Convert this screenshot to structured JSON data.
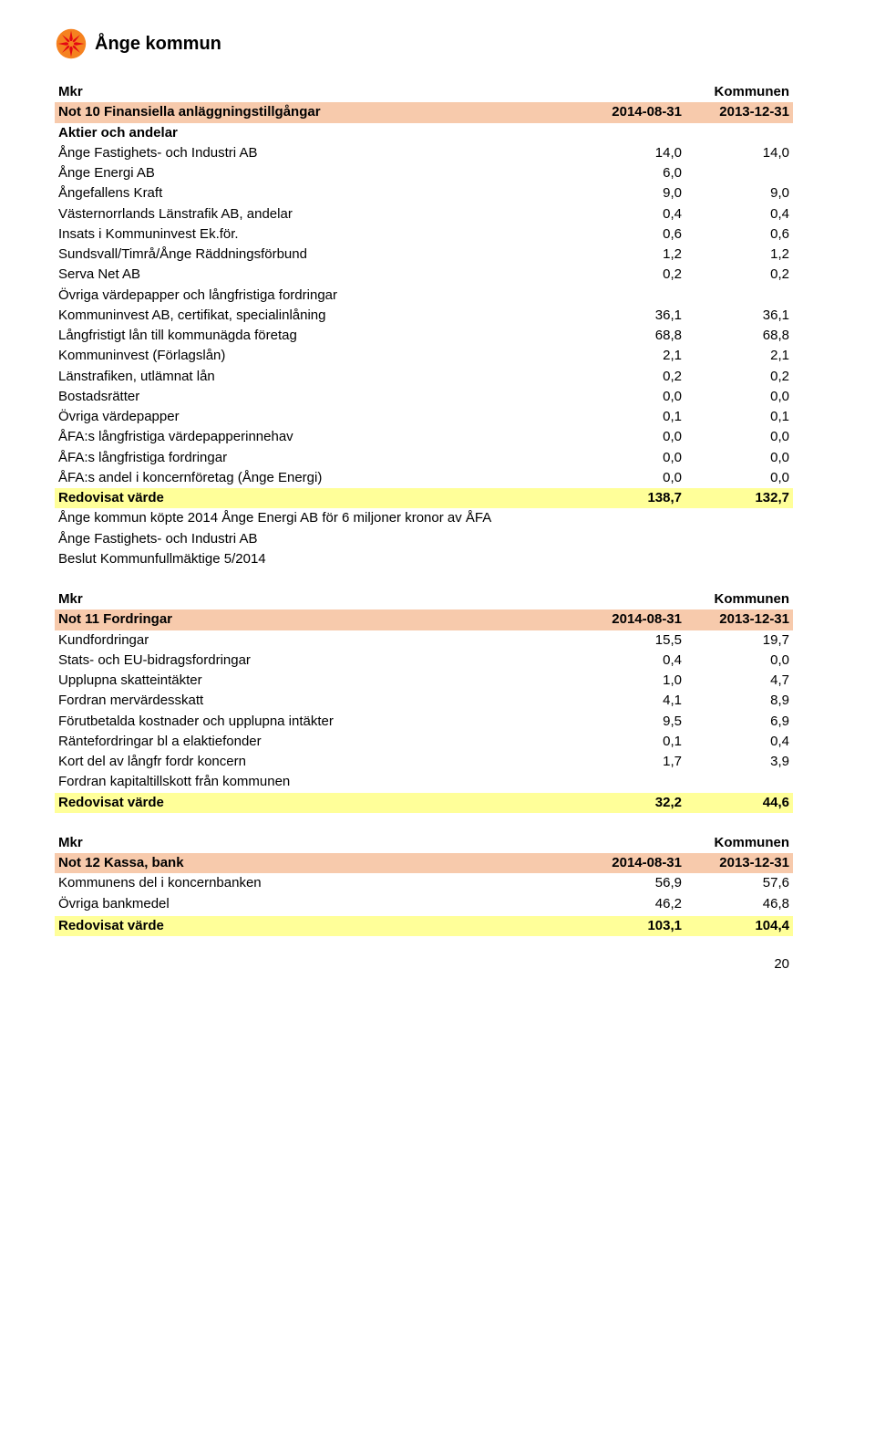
{
  "logo_text": "Ånge kommun",
  "page_number": "20",
  "colors": {
    "header_bg": "#f7caac",
    "sum_bg": "#ffff99",
    "logo_orange": "#f58220",
    "logo_red": "#e30613"
  },
  "t1": {
    "mkr": "Mkr",
    "kommunen": "Kommunen",
    "title": "Not 10 Finansiella anläggningstillgångar",
    "d1": "2014-08-31",
    "d2": "2013-12-31",
    "rows": [
      {
        "l": "Aktier och andelar",
        "a": "",
        "b": "",
        "bold": true
      },
      {
        "l": "Ånge Fastighets- och Industri AB",
        "a": "14,0",
        "b": "14,0"
      },
      {
        "l": "Ånge Energi AB",
        "a": "6,0",
        "b": ""
      },
      {
        "l": "Ångefallens Kraft",
        "a": "9,0",
        "b": "9,0"
      },
      {
        "l": "Västernorrlands Länstrafik AB, andelar",
        "a": "0,4",
        "b": "0,4"
      },
      {
        "l": "Insats i Kommuninvest Ek.för.",
        "a": "0,6",
        "b": "0,6"
      },
      {
        "l": "Sundsvall/Timrå/Ånge Räddningsförbund",
        "a": "1,2",
        "b": "1,2"
      },
      {
        "l": "Serva Net AB",
        "a": "0,2",
        "b": "0,2"
      },
      {
        "l": "Övriga värdepapper och långfristiga fordringar",
        "a": "",
        "b": ""
      },
      {
        "l": "Kommuninvest AB, certifikat, specialinlåning",
        "a": "36,1",
        "b": "36,1"
      },
      {
        "l": "Långfristigt lån till kommunägda företag",
        "a": "68,8",
        "b": "68,8"
      },
      {
        "l": "Kommuninvest (Förlagslån)",
        "a": "2,1",
        "b": "2,1"
      },
      {
        "l": "Länstrafiken, utlämnat lån",
        "a": "0,2",
        "b": "0,2"
      },
      {
        "l": "Bostadsrätter",
        "a": "0,0",
        "b": "0,0"
      },
      {
        "l": "Övriga värdepapper",
        "a": "0,1",
        "b": "0,1"
      },
      {
        "l": "ÅFA:s långfristiga värdepapperinnehav",
        "a": "0,0",
        "b": "0,0"
      },
      {
        "l": "ÅFA:s långfristiga fordringar",
        "a": "0,0",
        "b": "0,0"
      },
      {
        "l": "ÅFA:s andel i koncernföretag (Ånge Energi)",
        "a": "0,0",
        "b": "0,0"
      }
    ],
    "sum": {
      "l": "Redovisat värde",
      "a": "138,7",
      "b": "132,7"
    },
    "notes": [
      "Ånge kommun köpte 2014 Ånge Energi AB för 6 miljoner kronor av ÅFA",
      "Ånge Fastighets- och Industri AB",
      "Beslut Kommunfullmäktige 5/2014"
    ]
  },
  "t2": {
    "mkr": "Mkr",
    "kommunen": "Kommunen",
    "title": "Not 11 Fordringar",
    "d1": "2014-08-31",
    "d2": "2013-12-31",
    "rows": [
      {
        "l": "Kundfordringar",
        "a": "15,5",
        "b": "19,7"
      },
      {
        "l": "Stats- och EU-bidragsfordringar",
        "a": "0,4",
        "b": "0,0"
      },
      {
        "l": "Upplupna skatteintäkter",
        "a": "1,0",
        "b": "4,7"
      },
      {
        "l": "Fordran mervärdesskatt",
        "a": "4,1",
        "b": "8,9"
      },
      {
        "l": "Förutbetalda kostnader och upplupna intäkter",
        "a": "9,5",
        "b": "6,9"
      },
      {
        "l": "Räntefordringar bl a elaktiefonder",
        "a": "0,1",
        "b": "0,4"
      },
      {
        "l": "Kort del av långfr fordr koncern",
        "a": "1,7",
        "b": "3,9"
      },
      {
        "l": "Fordran kapitaltillskott från kommunen",
        "a": "",
        "b": ""
      }
    ],
    "sum": {
      "l": "Redovisat värde",
      "a": "32,2",
      "b": "44,6"
    }
  },
  "t3": {
    "mkr": "Mkr",
    "kommunen": "Kommunen",
    "title": "Not 12 Kassa, bank",
    "d1": "2014-08-31",
    "d2": "2013-12-31",
    "rows": [
      {
        "l": "Kommunens del i koncernbanken",
        "a": "56,9",
        "b": "57,6"
      },
      {
        "l": "Övriga bankmedel",
        "a": "46,2",
        "b": "46,8"
      },
      {
        "l": "",
        "a": "",
        "b": ""
      }
    ],
    "sum": {
      "l": "Redovisat värde",
      "a": "103,1",
      "b": "104,4"
    }
  }
}
